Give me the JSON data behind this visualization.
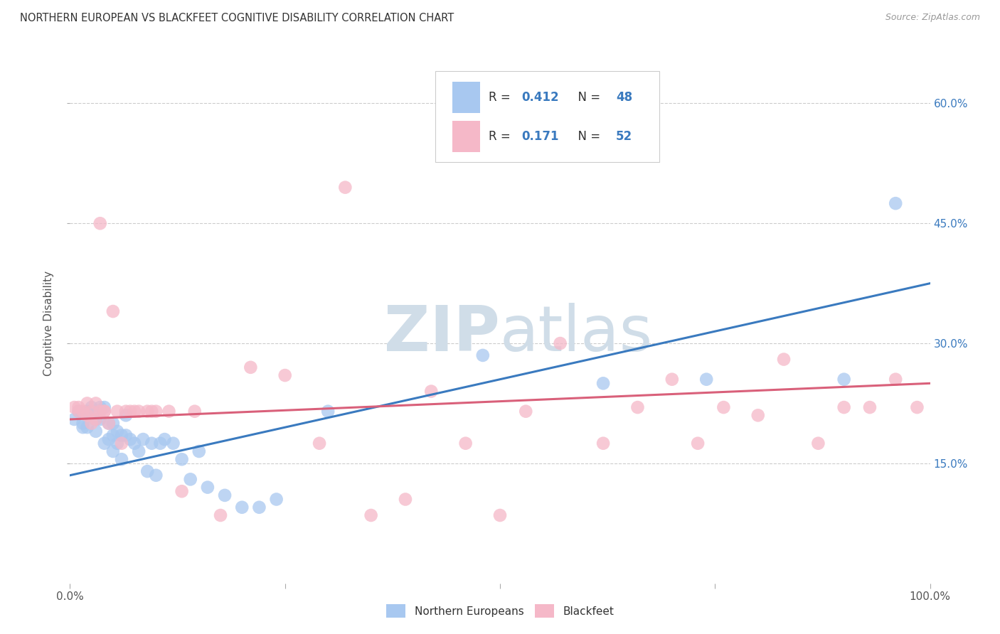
{
  "title": "NORTHERN EUROPEAN VS BLACKFEET COGNITIVE DISABILITY CORRELATION CHART",
  "source": "Source: ZipAtlas.com",
  "ylabel": "Cognitive Disability",
  "xlim": [
    0,
    1.0
  ],
  "ylim": [
    0.0,
    0.65
  ],
  "yticks_right": [
    0.15,
    0.3,
    0.45,
    0.6
  ],
  "yticklabels_right": [
    "15.0%",
    "30.0%",
    "45.0%",
    "60.0%"
  ],
  "grid_color": "#cccccc",
  "background_color": "#ffffff",
  "blue_color": "#a8c8f0",
  "pink_color": "#f5b8c8",
  "blue_line_color": "#3a7abf",
  "pink_line_color": "#d9607a",
  "legend_R1": "0.412",
  "legend_N1": "48",
  "legend_R2": "0.171",
  "legend_N2": "52",
  "legend_label1": "Northern Europeans",
  "legend_label2": "Blackfeet",
  "blue_scatter_x": [
    0.005,
    0.01,
    0.015,
    0.015,
    0.02,
    0.02,
    0.025,
    0.03,
    0.03,
    0.035,
    0.035,
    0.04,
    0.04,
    0.045,
    0.045,
    0.05,
    0.05,
    0.05,
    0.055,
    0.055,
    0.06,
    0.06,
    0.065,
    0.065,
    0.07,
    0.075,
    0.08,
    0.085,
    0.09,
    0.095,
    0.1,
    0.105,
    0.11,
    0.12,
    0.13,
    0.14,
    0.15,
    0.16,
    0.18,
    0.2,
    0.22,
    0.24,
    0.3,
    0.48,
    0.62,
    0.74,
    0.9,
    0.96
  ],
  "blue_scatter_y": [
    0.205,
    0.215,
    0.2,
    0.195,
    0.215,
    0.195,
    0.22,
    0.205,
    0.19,
    0.22,
    0.205,
    0.175,
    0.22,
    0.2,
    0.18,
    0.165,
    0.185,
    0.2,
    0.19,
    0.175,
    0.155,
    0.185,
    0.21,
    0.185,
    0.18,
    0.175,
    0.165,
    0.18,
    0.14,
    0.175,
    0.135,
    0.175,
    0.18,
    0.175,
    0.155,
    0.13,
    0.165,
    0.12,
    0.11,
    0.095,
    0.095,
    0.105,
    0.215,
    0.285,
    0.25,
    0.255,
    0.255,
    0.475
  ],
  "pink_scatter_x": [
    0.005,
    0.01,
    0.01,
    0.015,
    0.02,
    0.02,
    0.025,
    0.025,
    0.03,
    0.03,
    0.035,
    0.035,
    0.04,
    0.04,
    0.045,
    0.05,
    0.055,
    0.06,
    0.065,
    0.07,
    0.075,
    0.08,
    0.09,
    0.095,
    0.1,
    0.115,
    0.13,
    0.145,
    0.175,
    0.21,
    0.25,
    0.29,
    0.32,
    0.35,
    0.39,
    0.42,
    0.46,
    0.5,
    0.53,
    0.57,
    0.62,
    0.66,
    0.7,
    0.73,
    0.76,
    0.8,
    0.83,
    0.87,
    0.9,
    0.93,
    0.96,
    0.985
  ],
  "pink_scatter_y": [
    0.22,
    0.22,
    0.215,
    0.215,
    0.225,
    0.21,
    0.215,
    0.2,
    0.225,
    0.205,
    0.215,
    0.45,
    0.215,
    0.215,
    0.2,
    0.34,
    0.215,
    0.175,
    0.215,
    0.215,
    0.215,
    0.215,
    0.215,
    0.215,
    0.215,
    0.215,
    0.115,
    0.215,
    0.085,
    0.27,
    0.26,
    0.175,
    0.495,
    0.085,
    0.105,
    0.24,
    0.175,
    0.085,
    0.215,
    0.3,
    0.175,
    0.22,
    0.255,
    0.175,
    0.22,
    0.21,
    0.28,
    0.175,
    0.22,
    0.22,
    0.255,
    0.22
  ],
  "blue_line_y_start": 0.135,
  "blue_line_y_end": 0.375,
  "pink_line_y_start": 0.205,
  "pink_line_y_end": 0.25,
  "watermark_zip": "ZIP",
  "watermark_atlas": "atlas",
  "watermark_color": "#d0dde8",
  "watermark_fontsize": 64
}
